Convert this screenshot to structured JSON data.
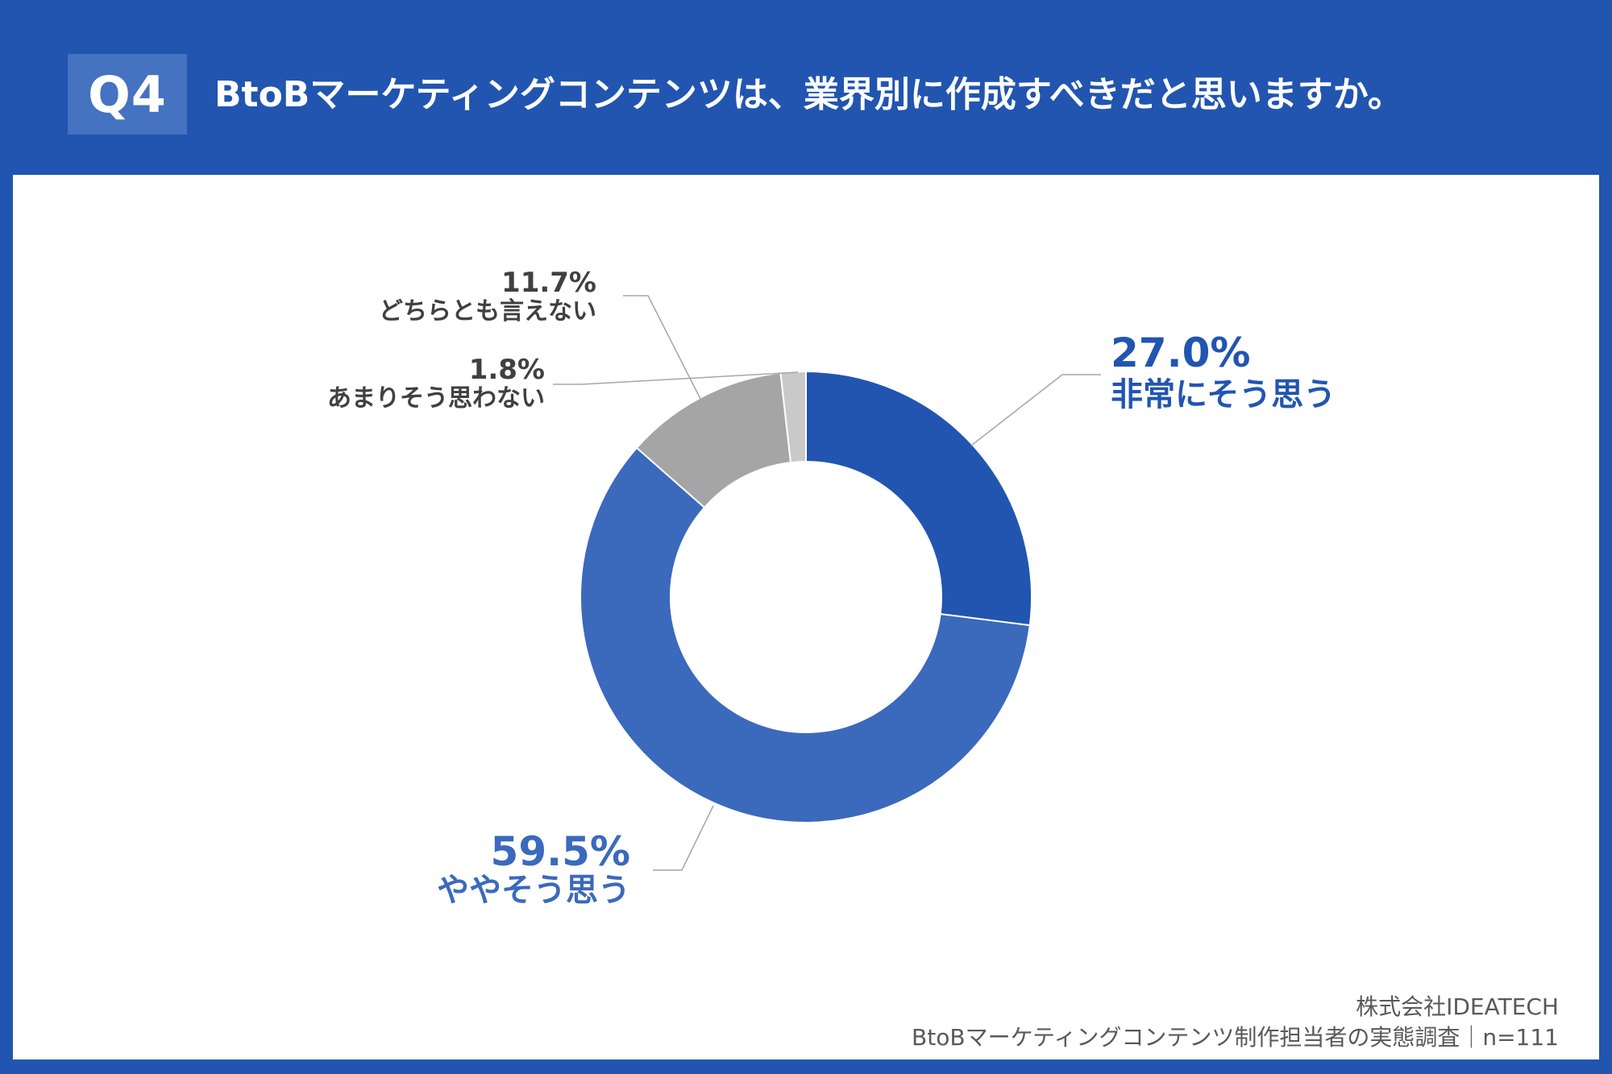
{
  "header": {
    "badge": "Q4",
    "title": "BtoBマーケティングコンテンツは、業界別に作成すべきだと思いますか。"
  },
  "chart_data": {
    "type": "pie",
    "variant": "donut",
    "title": "",
    "slices": [
      {
        "label": "非常にそう思う",
        "value": 27.0,
        "value_label": "27.0%",
        "color": "#2155b0",
        "label_color": "#2155b0"
      },
      {
        "label": "ややそう思う",
        "value": 59.5,
        "value_label": "59.5%",
        "color": "#3b69bc",
        "label_color": "#3b69bc"
      },
      {
        "label": "どちらとも言えない",
        "value": 11.7,
        "value_label": "11.7%",
        "color": "#a5a5a5",
        "label_color": "#404040"
      },
      {
        "label": "あまりそう思わない",
        "value": 1.8,
        "value_label": "1.8%",
        "color": "#c9c9c9",
        "label_color": "#404040"
      }
    ],
    "start_angle": "12 o'clock",
    "direction": "clockwise",
    "legend": "none"
  },
  "footer": {
    "company": "株式会社IDEATECH",
    "survey": "BtoBマーケティングコンテンツ制作担当者の実態調査｜n=111"
  }
}
